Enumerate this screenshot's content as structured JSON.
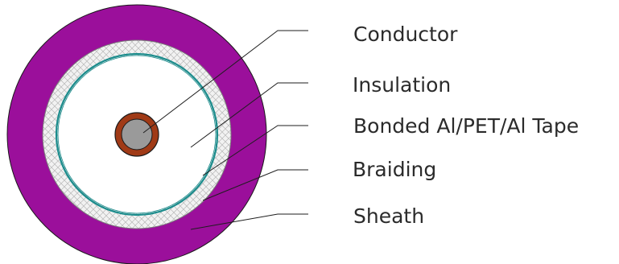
{
  "layers": [
    {
      "key": "conductor",
      "label": "Conductor"
    },
    {
      "key": "insulation",
      "label": "Insulation"
    },
    {
      "key": "tape",
      "label": "Bonded Al/PET/Al Tape"
    },
    {
      "key": "braiding",
      "label": "Braiding"
    },
    {
      "key": "sheath",
      "label": "Sheath"
    }
  ],
  "colors": {
    "sheath": "#9b0f9b",
    "braiding_fill": "#f2f2f2",
    "braiding_hatch": "#b8b8b8",
    "tape": "#1a8c8c",
    "insulation": "#ffffff",
    "conductor_core": "#9a9a9a",
    "conductor_ring": "#a03a16",
    "leader": "#1e1e1e"
  }
}
